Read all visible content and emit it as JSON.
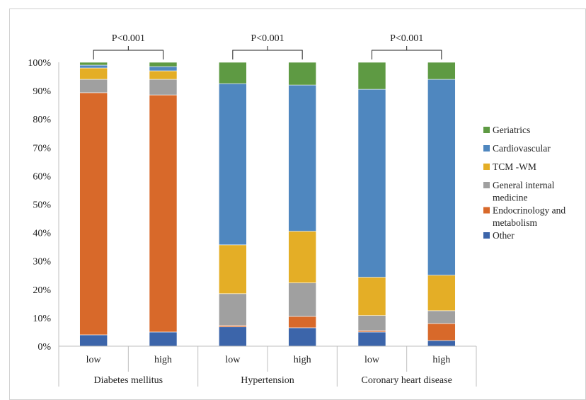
{
  "chart_data": {
    "type": "bar",
    "stacked": true,
    "percent": true,
    "title": "",
    "xlabel": "",
    "ylabel": "",
    "ylim": [
      0,
      100
    ],
    "y_ticks": [
      "0%",
      "10%",
      "20%",
      "30%",
      "40%",
      "50%",
      "60%",
      "70%",
      "80%",
      "90%",
      "100%"
    ],
    "grid": false,
    "legend_position": "right",
    "groups": [
      {
        "label": "Diabetes mellitus",
        "p_value": "P<0.001",
        "categories": [
          "low",
          "high"
        ]
      },
      {
        "label": "Hypertension",
        "p_value": "P<0.001",
        "categories": [
          "low",
          "high"
        ]
      },
      {
        "label": "Coronary heart disease",
        "p_value": "P<0.001",
        "categories": [
          "low",
          "high"
        ]
      }
    ],
    "categories": [
      "low",
      "high",
      "low",
      "high",
      "low",
      "high"
    ],
    "series": [
      {
        "name": "Other",
        "color": "#3C65AA",
        "values": [
          4.0,
          5.0,
          6.8,
          6.5,
          5.0,
          2.0
        ]
      },
      {
        "name": "Endocrinology and metabolism",
        "color": "#D8692A",
        "values": [
          85.3,
          83.5,
          0.5,
          4.0,
          0.5,
          6.0
        ]
      },
      {
        "name": "General internal medicine",
        "color": "#A0A0A0",
        "values": [
          4.7,
          5.5,
          11.2,
          11.8,
          5.3,
          4.5
        ]
      },
      {
        "name": "TCM -WM",
        "color": "#E4AE26",
        "values": [
          4.0,
          3.0,
          17.2,
          18.2,
          13.5,
          12.5
        ]
      },
      {
        "name": "Cardiovascular",
        "color": "#4F87BF",
        "values": [
          1.0,
          1.5,
          56.8,
          51.5,
          66.2,
          69.0
        ]
      },
      {
        "name": "Geriatrics",
        "color": "#5E9A43",
        "values": [
          1.0,
          1.5,
          7.5,
          8.0,
          9.5,
          6.0
        ]
      }
    ]
  }
}
